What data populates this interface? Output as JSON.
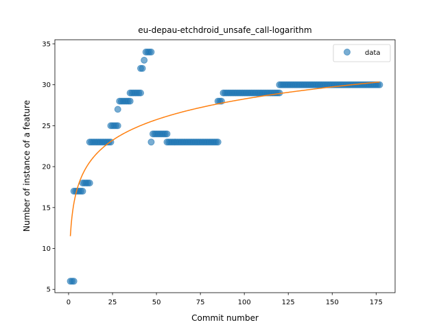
{
  "chart_data": {
    "type": "scatter",
    "title": "eu-depau-etchdroid_unsafe_call-logarithm",
    "xlabel": "Commit number",
    "ylabel": "Number of instance of a feature",
    "xlim": [
      -7.8,
      185.8
    ],
    "ylim": [
      4.6,
      35.5
    ],
    "xticks": [
      0,
      25,
      50,
      75,
      100,
      125,
      150,
      175
    ],
    "yticks": [
      5,
      10,
      15,
      20,
      25,
      30,
      35
    ],
    "grid": false,
    "legend": {
      "position": "top-right",
      "entries": [
        "data"
      ]
    },
    "colors": {
      "data": "#1f77b4",
      "fit": "#ff7f0e"
    },
    "series": [
      {
        "name": "data",
        "kind": "scatter",
        "segments": [
          {
            "x_start": 1,
            "x_end": 3,
            "y": 6
          },
          {
            "x_start": 3,
            "x_end": 8,
            "y": 17
          },
          {
            "x_start": 8,
            "x_end": 12,
            "y": 18
          },
          {
            "x_start": 12,
            "x_end": 24,
            "y": 23
          },
          {
            "x_start": 24,
            "x_end": 28,
            "y": 25
          },
          {
            "x_start": 28,
            "x_end": 28,
            "y": 27
          },
          {
            "x_start": 29,
            "x_end": 35,
            "y": 28
          },
          {
            "x_start": 35,
            "x_end": 41,
            "y": 29
          },
          {
            "x_start": 41,
            "x_end": 42,
            "y": 32
          },
          {
            "x_start": 43,
            "x_end": 43,
            "y": 33
          },
          {
            "x_start": 44,
            "x_end": 47,
            "y": 34
          },
          {
            "x_start": 47,
            "x_end": 47,
            "y": 23
          },
          {
            "x_start": 48,
            "x_end": 56,
            "y": 24
          },
          {
            "x_start": 56,
            "x_end": 85,
            "y": 23
          },
          {
            "x_start": 85,
            "x_end": 87,
            "y": 28
          },
          {
            "x_start": 88,
            "x_end": 120,
            "y": 29
          },
          {
            "x_start": 120,
            "x_end": 177,
            "y": 30
          }
        ]
      },
      {
        "kind": "line",
        "fit": "logarithmic",
        "a": 11.5,
        "b": 3.64,
        "x_range": [
          1,
          177
        ]
      }
    ]
  }
}
